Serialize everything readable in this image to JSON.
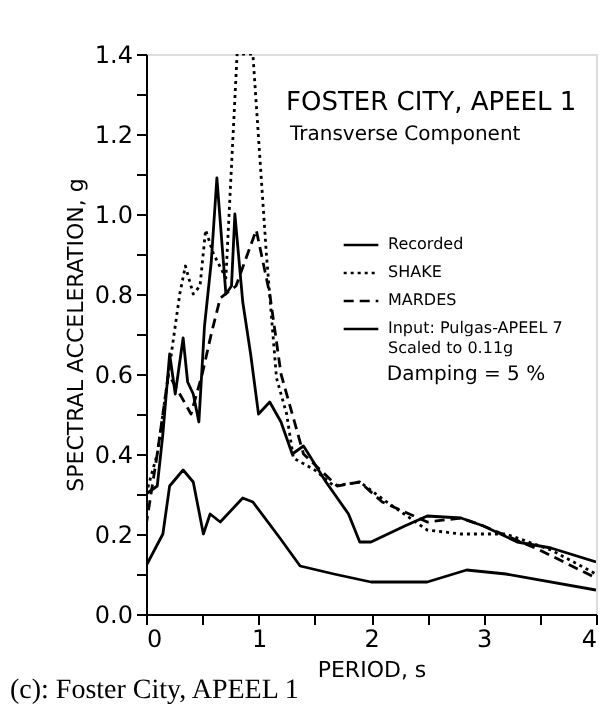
{
  "chart_data": {
    "type": "line",
    "title": "FOSTER CITY, APEEL 1",
    "subtitle": "Transverse Component",
    "xlabel": "PERIOD, s",
    "ylabel": "SPECTRAL ACCELERATION, g",
    "annotations": [
      "Damping = 5 %",
      "(c):  Foster City, APEEL 1"
    ],
    "legend": "right",
    "grid": false,
    "marker": "none",
    "xlim": [
      0,
      4
    ],
    "xticks": [
      0,
      {
        "value": 0.5,
        "label": null
      },
      1,
      {
        "value": 1.5,
        "label": null
      },
      2,
      {
        "value": 2.5,
        "label": null
      },
      3,
      {
        "value": 3.5,
        "label": null
      },
      4
    ],
    "ylim": [
      0,
      1.4
    ],
    "yticks": [
      {
        "value": 0,
        "label": "0.0"
      },
      {
        "value": 0.1,
        "label": null
      },
      {
        "value": 0.2,
        "label": "0.2"
      },
      {
        "value": 0.3,
        "label": null
      },
      {
        "value": 0.4,
        "label": "0.4"
      },
      {
        "value": 0.5,
        "label": null
      },
      {
        "value": 0.6,
        "label": "0.6"
      },
      {
        "value": 0.7,
        "label": null
      },
      {
        "value": 0.8,
        "label": "0.8"
      },
      {
        "value": 0.9,
        "label": null
      },
      {
        "value": 1.0,
        "label": "1.0"
      },
      {
        "value": 1.1,
        "label": null
      },
      {
        "value": 1.2,
        "label": "1.2"
      },
      {
        "value": 1.3,
        "label": null
      },
      {
        "value": 1.4,
        "label": "1.4"
      }
    ],
    "series": [
      {
        "name": "Recorded",
        "color": "#000000",
        "line_style": "solid",
        "x": [
          0,
          0.1,
          0.15,
          0.21,
          0.26,
          0.33,
          0.37,
          0.42,
          0.47,
          0.52,
          0.58,
          0.63,
          0.71,
          0.76,
          0.79,
          0.86,
          0.93,
          1.0,
          1.1,
          1.2,
          1.3,
          1.4,
          1.6,
          1.8,
          1.9,
          2.0,
          2.3,
          2.5,
          2.8,
          3.0,
          3.3,
          3.6,
          4.0
        ],
        "values": [
          0.3,
          0.32,
          0.45,
          0.65,
          0.55,
          0.69,
          0.58,
          0.55,
          0.48,
          0.72,
          0.88,
          1.09,
          0.8,
          0.82,
          1.0,
          0.78,
          0.65,
          0.5,
          0.53,
          0.48,
          0.4,
          0.42,
          0.33,
          0.25,
          0.18,
          0.18,
          0.22,
          0.245,
          0.24,
          0.22,
          0.18,
          0.165,
          0.13
        ]
      },
      {
        "name": "SHAKE",
        "color": "#000000",
        "line_style": "dotted",
        "x": [
          0,
          0.1,
          0.2,
          0.3,
          0.35,
          0.42,
          0.48,
          0.53,
          0.6,
          0.71,
          0.81,
          0.95,
          1.07,
          1.16,
          1.25,
          1.31,
          1.5,
          1.67,
          1.9,
          2.14,
          2.5,
          2.8,
          3.2,
          3.6,
          4.0
        ],
        "values": [
          0.3,
          0.4,
          0.6,
          0.8,
          0.87,
          0.8,
          0.82,
          0.96,
          0.9,
          0.84,
          1.4,
          1.4,
          0.9,
          0.59,
          0.5,
          0.39,
          0.36,
          0.32,
          0.33,
          0.28,
          0.21,
          0.2,
          0.2,
          0.16,
          0.1
        ]
      },
      {
        "name": "MARDES",
        "color": "#000000",
        "line_style": "dashed",
        "x": [
          0,
          0.1,
          0.2,
          0.3,
          0.4,
          0.5,
          0.58,
          0.66,
          0.8,
          0.98,
          1.1,
          1.2,
          1.4,
          1.7,
          1.9,
          2.1,
          2.5,
          2.8,
          3.0,
          3.5,
          4.0
        ],
        "values": [
          0.22,
          0.4,
          0.6,
          0.55,
          0.5,
          0.6,
          0.7,
          0.79,
          0.82,
          0.96,
          0.8,
          0.6,
          0.4,
          0.32,
          0.33,
          0.28,
          0.23,
          0.24,
          0.22,
          0.16,
          0.09
        ]
      },
      {
        "name": "Input: Pulgas-APEEL 7\nScaled to 0.11g",
        "color": "#000000",
        "line_style": "solid",
        "x": [
          0,
          0.15,
          0.21,
          0.33,
          0.42,
          0.51,
          0.57,
          0.66,
          0.86,
          0.95,
          1.19,
          1.37,
          1.67,
          2.0,
          2.5,
          2.85,
          3.2,
          4.0
        ],
        "values": [
          0.12,
          0.2,
          0.32,
          0.36,
          0.33,
          0.2,
          0.25,
          0.23,
          0.29,
          0.28,
          0.19,
          0.12,
          0.1,
          0.08,
          0.08,
          0.11,
          0.1,
          0.06
        ]
      }
    ]
  }
}
